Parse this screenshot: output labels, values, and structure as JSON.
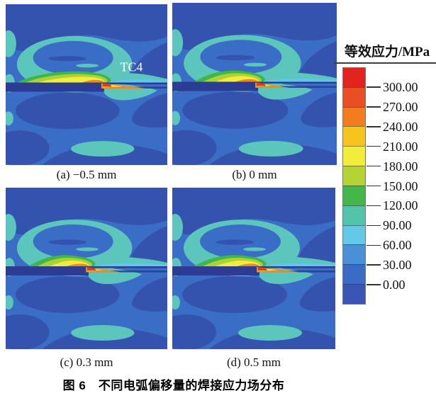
{
  "figure": {
    "caption": "图 6　不同电弧偏移量的焊接应力场分布",
    "panels": [
      {
        "id": "a",
        "label": "(a) −0.5 mm",
        "annotation": "TC4"
      },
      {
        "id": "b",
        "label": "(b) 0 mm",
        "annotation": ""
      },
      {
        "id": "c",
        "label": "(c) 0.3 mm",
        "annotation": ""
      },
      {
        "id": "d",
        "label": "(d) 0.5 mm",
        "annotation": ""
      }
    ],
    "legend": {
      "title": "等效应力/MPa",
      "tick_labels": [
        "300.00",
        "270.00",
        "240.00",
        "210.00",
        "180.00",
        "150.00",
        "120.00",
        "90.00",
        "60.00",
        "30.00",
        "0.00"
      ],
      "band_colors": [
        "#e2231f",
        "#e94e25",
        "#f47c20",
        "#f7c41d",
        "#f2ec3b",
        "#b5d434",
        "#45b649",
        "#53c3a9",
        "#64c8e9",
        "#4a90d8",
        "#3a6cc6",
        "#3a55b6"
      ]
    },
    "contour_colors": {
      "field": "#3a6dc6",
      "low": "#3453af",
      "plate": "#2b3c92",
      "teal": "#5cc6bd",
      "cyan": "#62c6ea",
      "green": "#3db64b",
      "yellow_green": "#a9d234",
      "yellow": "#f2ec3c",
      "orange": "#f1871f",
      "red": "#e23c22"
    }
  }
}
